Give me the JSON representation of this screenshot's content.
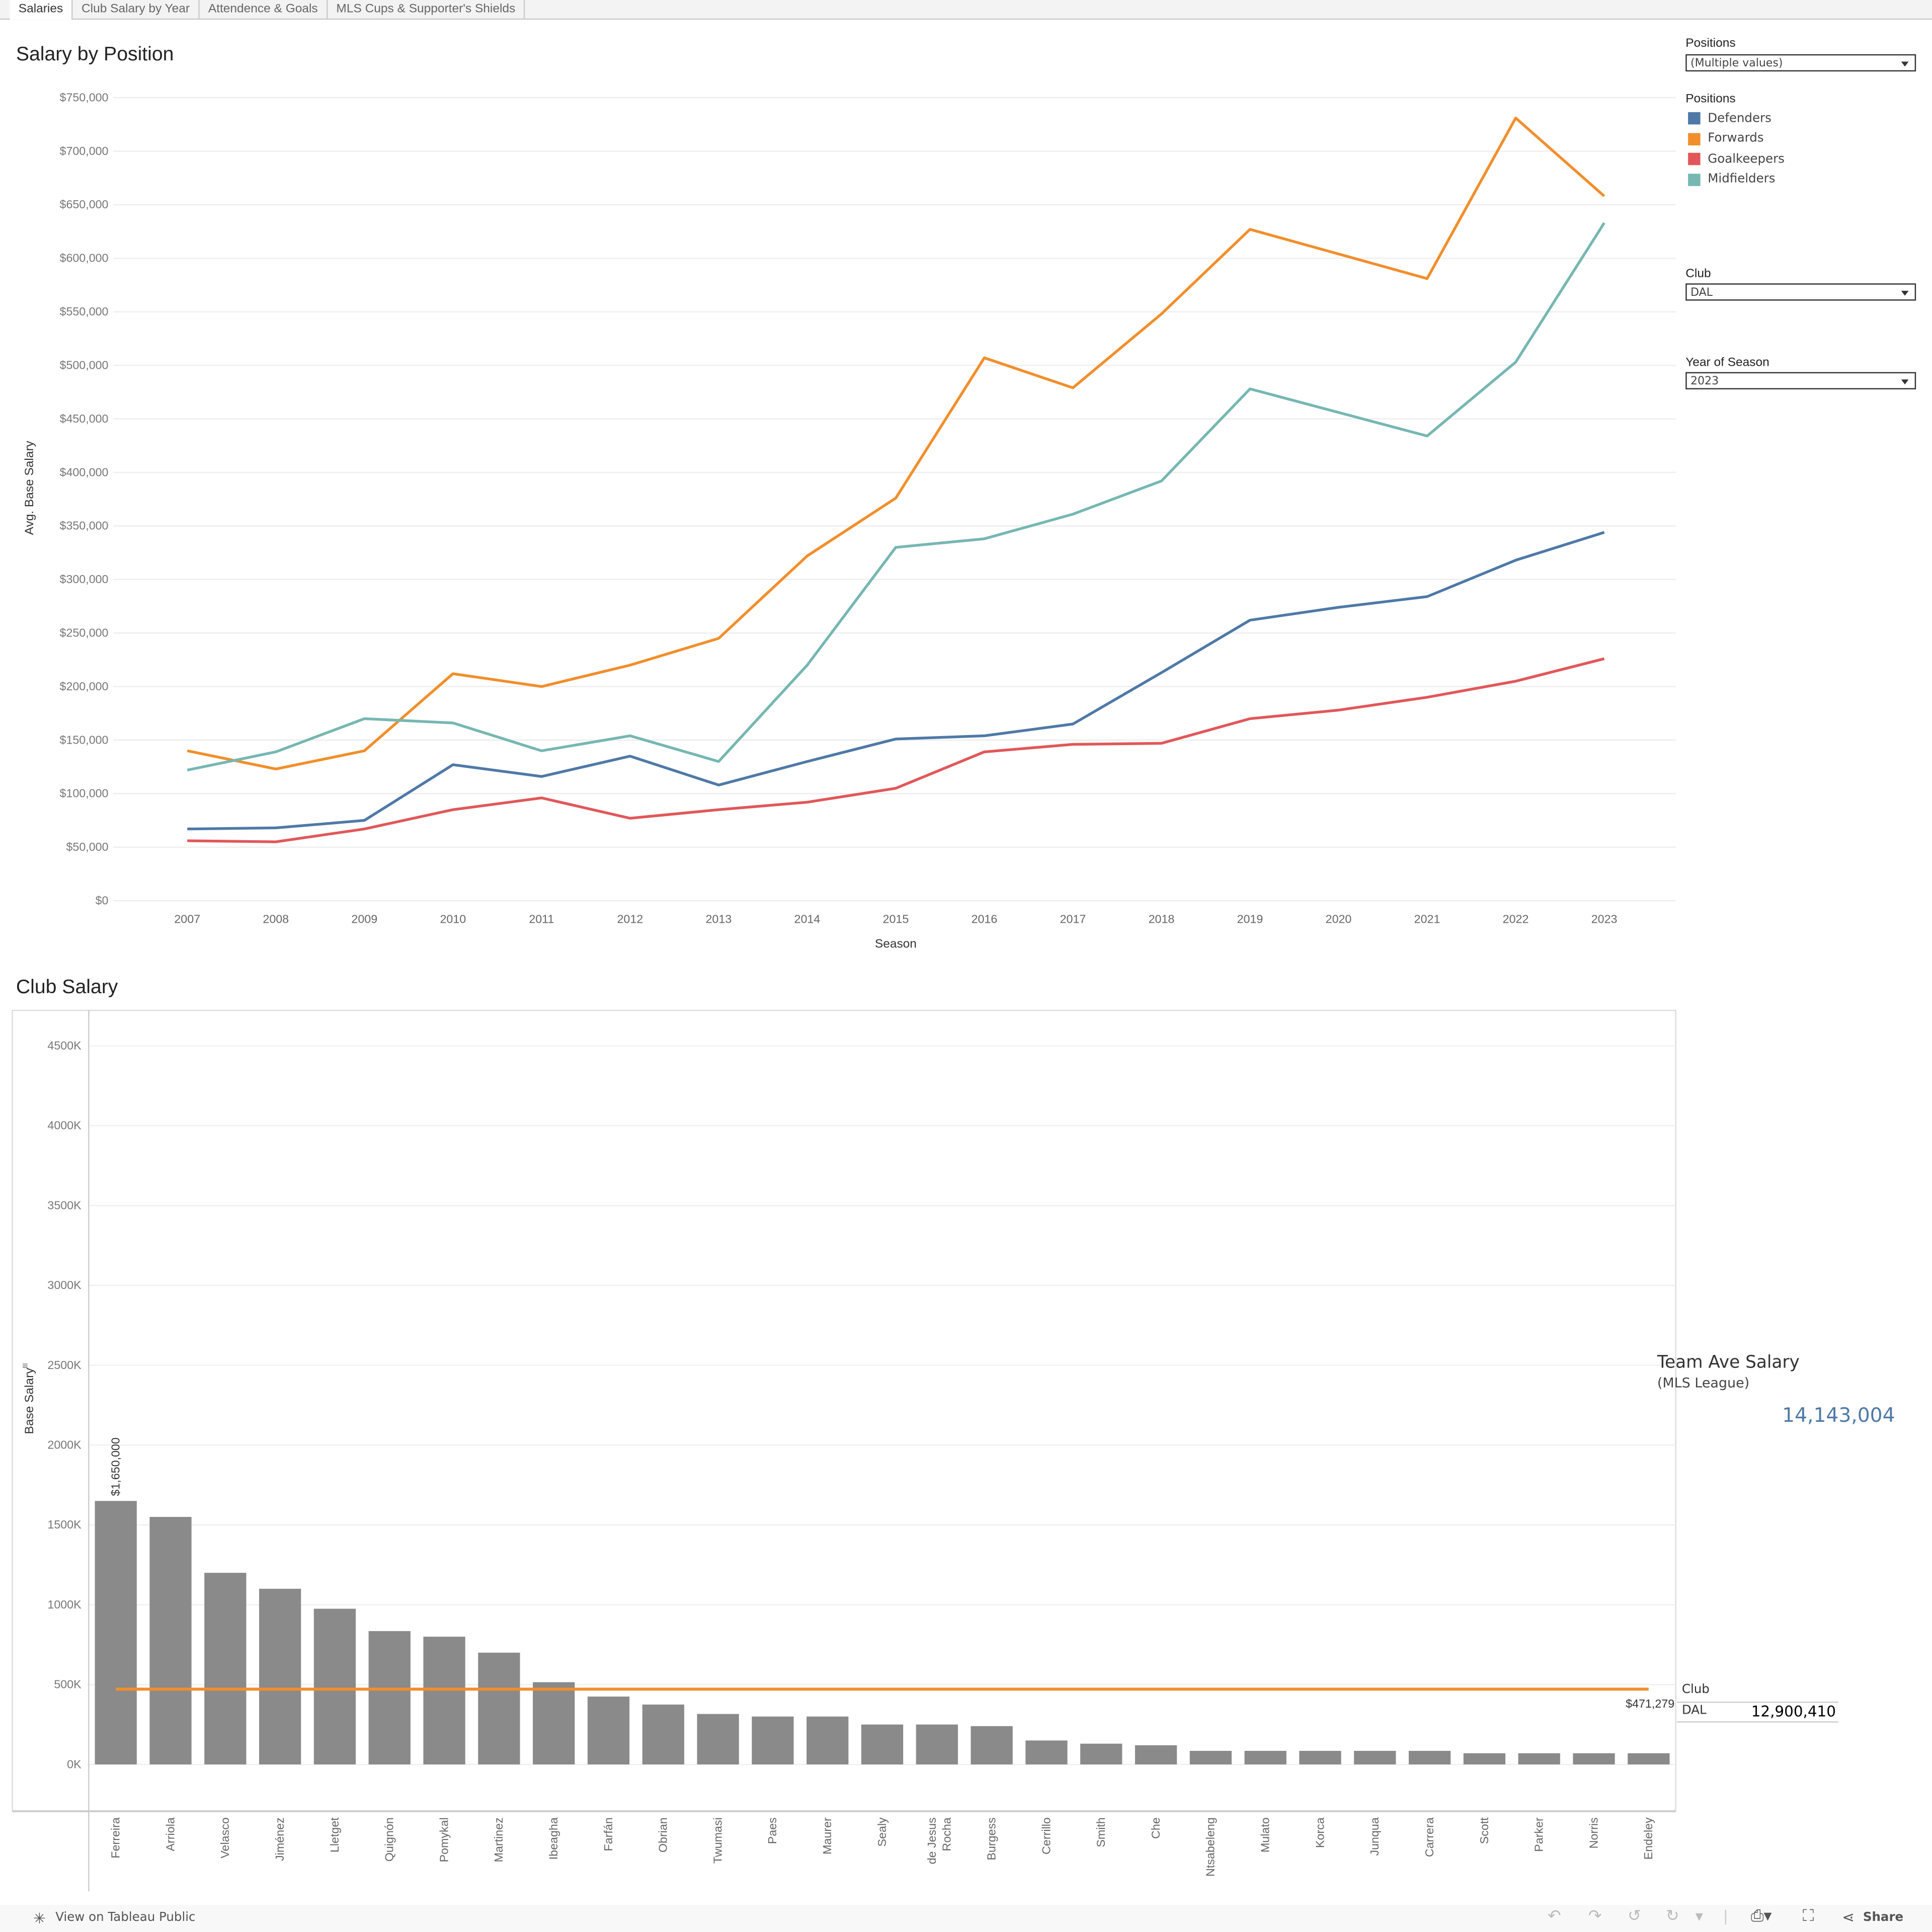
{
  "tabs": [
    "Salaries",
    "Club Salary by Year",
    "Attendence & Goals",
    "MLS Cups & Supporter's Shields"
  ],
  "active_tab": 0,
  "filters": {
    "positions_label": "Positions",
    "positions_value": "(Multiple values)",
    "legend_title": "Positions",
    "club_label": "Club",
    "club_value": "DAL",
    "year_label": "Year of Season",
    "year_value": "2023"
  },
  "kpi": {
    "title": "Team Ave Salary",
    "subtitle": "(MLS League)",
    "value": "14,143,004",
    "value_color": "#4e79a7",
    "club_header": "Club",
    "club": "DAL",
    "club_value": "12,900,410"
  },
  "footer": {
    "view_label": "View on Tableau Public",
    "share_label": "Share",
    "icons": [
      "undo-icon",
      "redo-icon",
      "revert-icon",
      "refresh-icon",
      "download-icon",
      "fullscreen-icon",
      "share-icon"
    ]
  },
  "chart_data": [
    {
      "type": "line",
      "title": "Salary by Position",
      "xlabel": "Season",
      "ylabel": "Avg. Base Salary",
      "x": [
        2007,
        2008,
        2009,
        2010,
        2011,
        2012,
        2013,
        2014,
        2015,
        2016,
        2017,
        2018,
        2019,
        2020,
        2021,
        2022,
        2023
      ],
      "ylim": [
        0,
        750000
      ],
      "yticks": [
        "$0",
        "$50,000",
        "$100,000",
        "$150,000",
        "$200,000",
        "$250,000",
        "$300,000",
        "$350,000",
        "$400,000",
        "$450,000",
        "$500,000",
        "$550,000",
        "$600,000",
        "$650,000",
        "$700,000",
        "$750,000"
      ],
      "grid": true,
      "legend": "right",
      "series": [
        {
          "name": "Defenders",
          "color": "#4e79a7",
          "values": [
            67000,
            68000,
            75000,
            127000,
            116000,
            135000,
            108000,
            130000,
            151000,
            154000,
            165000,
            213000,
            262000,
            274000,
            284000,
            318000,
            344000
          ]
        },
        {
          "name": "Forwards",
          "color": "#f28e2b",
          "values": [
            140000,
            123000,
            140000,
            212000,
            200000,
            220000,
            245000,
            322000,
            376000,
            507000,
            479000,
            548000,
            627000,
            604000,
            581000,
            731000,
            658000
          ]
        },
        {
          "name": "Goalkeepers",
          "color": "#e15759",
          "values": [
            56000,
            55000,
            67000,
            85000,
            96000,
            77000,
            85000,
            92000,
            105000,
            139000,
            146000,
            147000,
            170000,
            178000,
            190000,
            205000,
            226000
          ]
        },
        {
          "name": "Midfielders",
          "color": "#76b7b2",
          "values": [
            122000,
            139000,
            170000,
            166000,
            140000,
            154000,
            130000,
            220000,
            330000,
            338000,
            361000,
            392000,
            478000,
            456000,
            434000,
            503000,
            633000
          ]
        }
      ]
    },
    {
      "type": "bar",
      "title": "Club Salary",
      "ylabel": "Base Salary",
      "ylim": [
        0,
        4500000
      ],
      "yticks": [
        "0K",
        "500K",
        "1000K",
        "1500K",
        "2000K",
        "2500K",
        "3000K",
        "3500K",
        "4000K",
        "4500K"
      ],
      "bar_color": "#8a8a8a",
      "categories": [
        "Ferreira",
        "Arriola",
        "Velasco",
        "Jiménez",
        "Lletget",
        "Quignón",
        "Pomykal",
        "Martinez",
        "Ibeagha",
        "Farfán",
        "Obrian",
        "Twumasi",
        "Paes",
        "Maurer",
        "Sealy",
        "de Jesus Rocha",
        "Burgess",
        "Cerrillo",
        "Smith",
        "Che",
        "Ntsabeleng",
        "Mulato",
        "Korca",
        "Junqua",
        "Carrera",
        "Scott",
        "Parker",
        "Norris",
        "Endeley"
      ],
      "values": [
        1650000,
        1550000,
        1200000,
        1100000,
        975000,
        835000,
        800000,
        700000,
        515000,
        425000,
        375000,
        316000,
        300000,
        300000,
        250000,
        250000,
        240000,
        150000,
        130000,
        120000,
        85000,
        85000,
        85000,
        85000,
        85000,
        70000,
        70000,
        70000,
        70000
      ],
      "data_label": "$1,650,000",
      "reference_line": {
        "value": 471279,
        "label": "$471,279",
        "color": "#f28e2b"
      }
    }
  ]
}
